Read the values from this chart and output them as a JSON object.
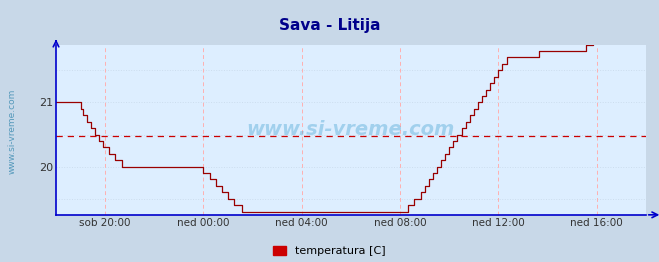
{
  "title": "Sava - Litija",
  "title_color": "#00008B",
  "title_fontsize": 11,
  "bg_color": "#c8d8e8",
  "plot_bg_color": "#ddeeff",
  "line_color": "#990000",
  "avg_line_color": "#cc0000",
  "avg_line_value": 20.47,
  "ylabel_text": "www.si-vreme.com",
  "watermark": "www.si-vreme.com",
  "legend_label": "temperatura [C]",
  "legend_color": "#cc0000",
  "yticks": [
    20,
    21
  ],
  "ylim": [
    19.25,
    21.9
  ],
  "xlim": [
    0,
    288
  ],
  "xtick_positions": [
    24,
    72,
    120,
    168,
    216,
    264
  ],
  "xtick_labels": [
    "sob 20:00",
    "ned 00:00",
    "ned 04:00",
    "ned 08:00",
    "ned 12:00",
    "ned 16:00"
  ],
  "data": [
    21.0,
    21.0,
    21.0,
    21.0,
    21.0,
    21.0,
    21.0,
    21.0,
    21.0,
    21.0,
    21.0,
    21.0,
    20.9,
    20.8,
    20.8,
    20.7,
    20.7,
    20.6,
    20.6,
    20.5,
    20.5,
    20.4,
    20.4,
    20.3,
    20.3,
    20.3,
    20.2,
    20.2,
    20.2,
    20.1,
    20.1,
    20.1,
    20.0,
    20.0,
    20.0,
    20.0,
    20.0,
    20.0,
    20.0,
    20.0,
    20.0,
    20.0,
    20.0,
    20.0,
    20.0,
    20.0,
    20.0,
    20.0,
    20.0,
    20.0,
    20.0,
    20.0,
    20.0,
    20.0,
    20.0,
    20.0,
    20.0,
    20.0,
    20.0,
    20.0,
    20.0,
    20.0,
    20.0,
    20.0,
    20.0,
    20.0,
    20.0,
    20.0,
    20.0,
    20.0,
    20.0,
    20.0,
    19.9,
    19.9,
    19.9,
    19.8,
    19.8,
    19.8,
    19.7,
    19.7,
    19.7,
    19.6,
    19.6,
    19.6,
    19.5,
    19.5,
    19.5,
    19.4,
    19.4,
    19.4,
    19.4,
    19.3,
    19.3,
    19.3,
    19.3,
    19.3,
    19.3,
    19.3,
    19.3,
    19.3,
    19.3,
    19.3,
    19.3,
    19.3,
    19.3,
    19.3,
    19.3,
    19.3,
    19.3,
    19.3,
    19.3,
    19.3,
    19.3,
    19.3,
    19.3,
    19.3,
    19.3,
    19.3,
    19.3,
    19.3,
    19.3,
    19.3,
    19.3,
    19.3,
    19.3,
    19.3,
    19.3,
    19.3,
    19.3,
    19.3,
    19.3,
    19.3,
    19.3,
    19.3,
    19.3,
    19.3,
    19.3,
    19.3,
    19.3,
    19.3,
    19.3,
    19.3,
    19.3,
    19.3,
    19.3,
    19.3,
    19.3,
    19.3,
    19.3,
    19.3,
    19.3,
    19.3,
    19.3,
    19.3,
    19.3,
    19.3,
    19.3,
    19.3,
    19.3,
    19.3,
    19.3,
    19.3,
    19.3,
    19.3,
    19.3,
    19.3,
    19.3,
    19.3,
    19.3,
    19.3,
    19.3,
    19.3,
    19.4,
    19.4,
    19.4,
    19.5,
    19.5,
    19.5,
    19.6,
    19.6,
    19.7,
    19.7,
    19.8,
    19.8,
    19.9,
    19.9,
    20.0,
    20.0,
    20.1,
    20.1,
    20.2,
    20.2,
    20.3,
    20.3,
    20.4,
    20.4,
    20.5,
    20.5,
    20.6,
    20.6,
    20.7,
    20.7,
    20.8,
    20.8,
    20.9,
    20.9,
    21.0,
    21.0,
    21.1,
    21.1,
    21.2,
    21.2,
    21.3,
    21.3,
    21.4,
    21.4,
    21.5,
    21.5,
    21.6,
    21.6,
    21.7,
    21.7,
    21.7,
    21.7,
    21.7,
    21.7,
    21.7,
    21.7,
    21.7,
    21.7,
    21.7,
    21.7,
    21.7,
    21.7,
    21.7,
    21.7,
    21.8,
    21.8,
    21.8,
    21.8,
    21.8,
    21.8,
    21.8,
    21.8,
    21.8,
    21.8,
    21.8,
    21.8,
    21.8,
    21.8,
    21.8,
    21.8,
    21.8,
    21.8,
    21.8,
    21.8,
    21.8,
    21.8,
    21.8,
    21.9,
    21.9,
    21.9,
    22.0,
    22.0,
    22.0,
    22.0,
    22.0,
    22.0,
    22.0,
    22.0,
    22.0,
    22.0
  ]
}
